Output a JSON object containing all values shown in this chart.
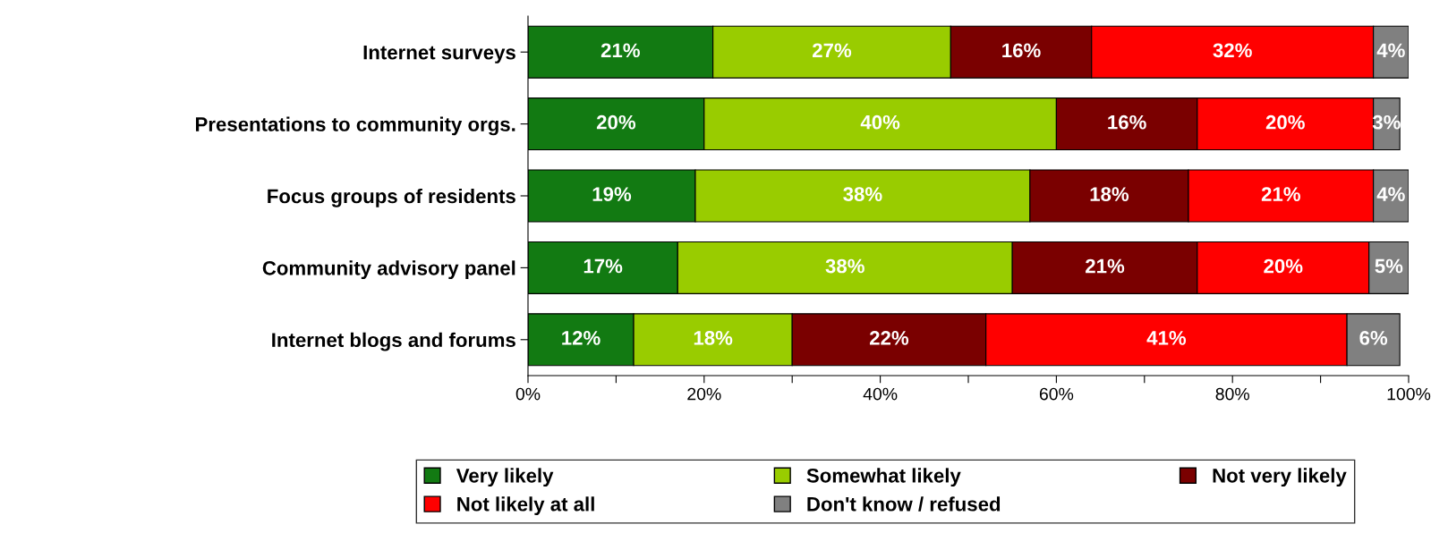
{
  "chart_data": {
    "type": "bar",
    "orientation": "horizontal",
    "stacked": true,
    "categories": [
      "Internet surveys",
      "Presentations to community orgs.",
      "Focus groups of residents",
      "Community advisory panel",
      "Internet blogs and forums"
    ],
    "series": [
      {
        "name": "Very likely",
        "color": "#127a12",
        "values": [
          21,
          20,
          19,
          17,
          12
        ],
        "value_labels": [
          "21%",
          "20%",
          "19%",
          "17%",
          "12%"
        ]
      },
      {
        "name": "Somewhat likely",
        "color": "#99cc00",
        "values": [
          27,
          40,
          38,
          38,
          18
        ],
        "value_labels": [
          "27%",
          "40%",
          "38%",
          "38%",
          "18%"
        ]
      },
      {
        "name": "Not very likely",
        "color": "#7a0000",
        "values": [
          16,
          16,
          18,
          21,
          22
        ],
        "value_labels": [
          "16%",
          "16%",
          "18%",
          "21%",
          "22%"
        ]
      },
      {
        "name": "Not likely at all",
        "color": "#ff0000",
        "values": [
          32,
          20,
          21,
          19.5,
          41
        ],
        "value_labels": [
          "32%",
          "20%",
          "21%",
          "20%",
          "41%"
        ]
      },
      {
        "name": "Don't know / refused",
        "color": "#808080",
        "values": [
          4,
          3,
          4,
          4.5,
          6
        ],
        "value_labels": [
          "4%",
          "3%",
          "4%",
          "5%",
          "6%"
        ]
      }
    ],
    "xlim": [
      0,
      100
    ],
    "xticks": [
      {
        "value": 0,
        "label": "0%"
      },
      {
        "value": 10,
        "label": null
      },
      {
        "value": 20,
        "label": "20%"
      },
      {
        "value": 30,
        "label": null
      },
      {
        "value": 40,
        "label": "40%"
      },
      {
        "value": 50,
        "label": null
      },
      {
        "value": 60,
        "label": "60%"
      },
      {
        "value": 70,
        "label": null
      },
      {
        "value": 80,
        "label": "80%"
      },
      {
        "value": 90,
        "label": null
      },
      {
        "value": 100,
        "label": "100%"
      }
    ],
    "grid": false,
    "legend": "bottom"
  }
}
